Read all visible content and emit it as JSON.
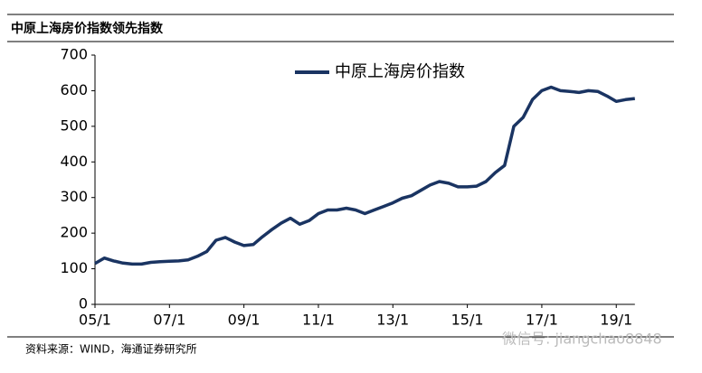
{
  "chart_data": {
    "type": "line",
    "title": "中原上海房价指数领先指数",
    "source": "资料来源：WIND，海通证券研究所",
    "watermark": "微信号: jiangchao8848",
    "categories": [
      "05/1",
      null,
      null,
      null,
      null,
      null,
      null,
      null,
      "07/1",
      null,
      null,
      null,
      null,
      null,
      null,
      null,
      "09/1",
      null,
      null,
      null,
      null,
      null,
      null,
      null,
      "11/1",
      null,
      null,
      null,
      null,
      null,
      null,
      null,
      "13/1",
      null,
      null,
      null,
      null,
      null,
      null,
      null,
      "15/1",
      null,
      null,
      null,
      null,
      null,
      null,
      null,
      "17/1",
      null,
      null,
      null,
      null,
      null,
      null,
      null,
      "19/1",
      null,
      null
    ],
    "series": [
      {
        "name": "中原上海房价指数",
        "color": "#1a3462",
        "values": [
          115,
          130,
          122,
          116,
          113,
          113,
          118,
          120,
          121,
          122,
          125,
          135,
          148,
          180,
          188,
          175,
          165,
          168,
          190,
          210,
          228,
          242,
          225,
          235,
          255,
          265,
          265,
          270,
          265,
          255,
          265,
          275,
          285,
          298,
          305,
          320,
          335,
          345,
          340,
          330,
          330,
          332,
          345,
          370,
          390,
          500,
          525,
          575,
          600,
          610,
          600,
          598,
          595,
          600,
          598,
          585,
          570,
          575,
          578
        ]
      }
    ],
    "ylim": [
      0,
      700
    ],
    "yticks": [
      0,
      100,
      200,
      300,
      400,
      500,
      600,
      700
    ],
    "grid": false,
    "legend": "top"
  }
}
